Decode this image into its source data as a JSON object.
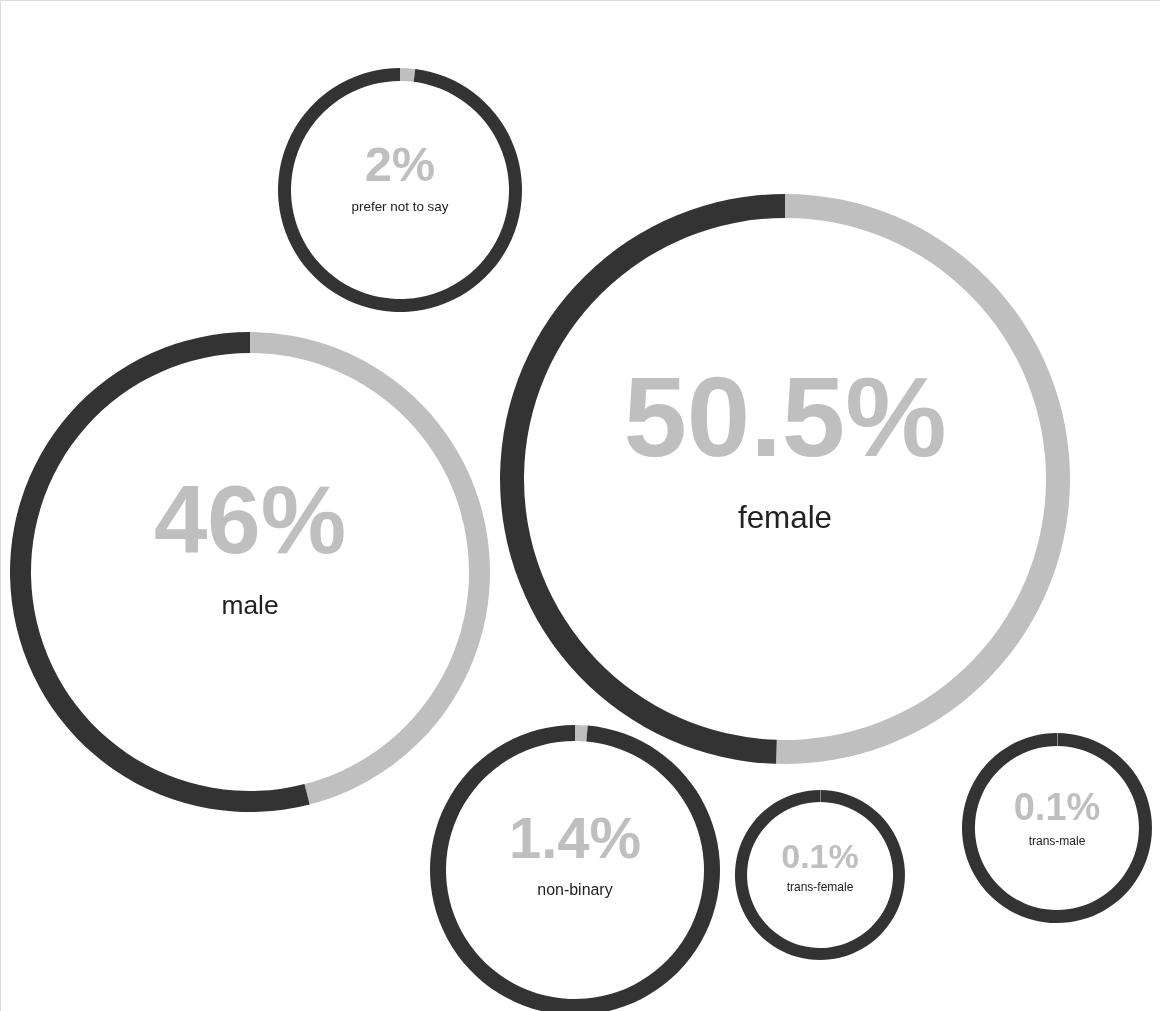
{
  "chart_data": [
    {
      "type": "donut",
      "categories": [
        "prefer not to say",
        null
      ],
      "values": [
        2,
        98
      ],
      "colors": [
        "#bfbfbf",
        "#333333"
      ],
      "value_labels": [
        "2%",
        null
      ]
    },
    {
      "type": "donut",
      "categories": [
        "female",
        null
      ],
      "values": [
        50.5,
        49.5
      ],
      "colors": [
        "#bfbfbf",
        "#333333"
      ],
      "value_labels": [
        "50.5%",
        null
      ]
    },
    {
      "type": "donut",
      "categories": [
        "male",
        null
      ],
      "values": [
        46,
        54
      ],
      "colors": [
        "#bfbfbf",
        "#333333"
      ],
      "value_labels": [
        "46%",
        null
      ]
    },
    {
      "type": "donut",
      "categories": [
        "non-binary",
        null
      ],
      "values": [
        1.4,
        98.6
      ],
      "colors": [
        "#bfbfbf",
        "#333333"
      ],
      "value_labels": [
        "1.4%",
        null
      ]
    },
    {
      "type": "donut",
      "categories": [
        "trans-male",
        null
      ],
      "values": [
        0.1,
        99.9
      ],
      "colors": [
        "#bfbfbf",
        "#333333"
      ],
      "value_labels": [
        "0.1%",
        null
      ]
    },
    {
      "type": "donut",
      "categories": [
        "trans-female",
        null
      ],
      "values": [
        0.1,
        99.9
      ],
      "colors": [
        "#bfbfbf",
        "#333333"
      ],
      "value_labels": [
        "0.1%",
        null
      ]
    }
  ]
}
